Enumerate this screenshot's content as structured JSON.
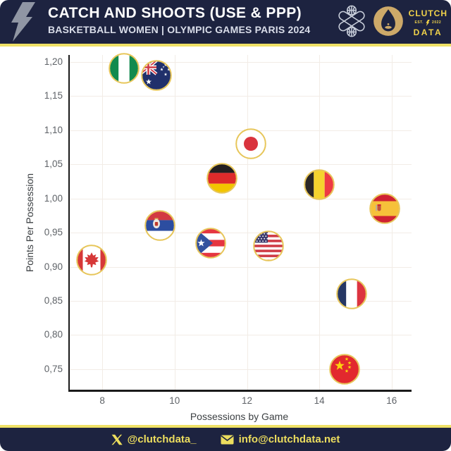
{
  "header": {
    "title": "CATCH AND SHOOTS (USE & PPP)",
    "subtitle": "BASKETBALL WOMEN | OLYMPIC GAMES PARIS 2024",
    "logo": {
      "clutch": "CLUTCH",
      "est": "EST.",
      "year": "2022",
      "data": "DATA"
    }
  },
  "footer": {
    "twitter_handle": "@clutchdata_",
    "email": "info@clutchdata.net"
  },
  "brand": {
    "navy": "#1d2340",
    "yellow": "#efe166",
    "gold": "#cda969",
    "flag_ring_gold": "#e7c65a"
  },
  "icons": {
    "header_left": "lightning-bolt-icon",
    "header_right": [
      "basketball-crossed-icon",
      "paris-2024-flame-icon"
    ],
    "footer": [
      "x-twitter-icon",
      "envelope-icon"
    ]
  },
  "chart_data": {
    "type": "scatter",
    "title": "Catch and Shoots (Use & PPP)",
    "xlabel": "Possessions by Game",
    "ylabel": "Points Per Possession",
    "x_ticks": [
      8,
      10,
      12,
      14,
      16
    ],
    "y_ticks": [
      1.2,
      1.15,
      1.1,
      1.05,
      1.0,
      0.95,
      0.9,
      0.85,
      0.8,
      0.75
    ],
    "xlim": [
      7.1,
      16.55
    ],
    "ylim": [
      0.72,
      1.21
    ],
    "grid": true,
    "decimal_separator": ",",
    "marker_style": "circular-flag-gold-ring",
    "points": [
      {
        "team": "Nigeria",
        "flag": "nigeria",
        "x": 8.6,
        "y": 1.19
      },
      {
        "team": "Australia",
        "flag": "australia",
        "x": 9.5,
        "y": 1.18
      },
      {
        "team": "Japan",
        "flag": "japan",
        "x": 12.1,
        "y": 1.08
      },
      {
        "team": "Germany",
        "flag": "germany",
        "x": 11.3,
        "y": 1.03
      },
      {
        "team": "Belgium",
        "flag": "belgium",
        "x": 14.0,
        "y": 1.02
      },
      {
        "team": "Spain",
        "flag": "spain",
        "x": 15.8,
        "y": 0.985
      },
      {
        "team": "Serbia",
        "flag": "serbia",
        "x": 9.6,
        "y": 0.96
      },
      {
        "team": "Puerto Rico",
        "flag": "puerto-rico",
        "x": 11.0,
        "y": 0.935
      },
      {
        "team": "USA",
        "flag": "usa",
        "x": 12.6,
        "y": 0.93
      },
      {
        "team": "Canada",
        "flag": "canada",
        "x": 7.7,
        "y": 0.91
      },
      {
        "team": "France",
        "flag": "france",
        "x": 14.9,
        "y": 0.86
      },
      {
        "team": "China",
        "flag": "china",
        "x": 14.7,
        "y": 0.75
      }
    ]
  }
}
